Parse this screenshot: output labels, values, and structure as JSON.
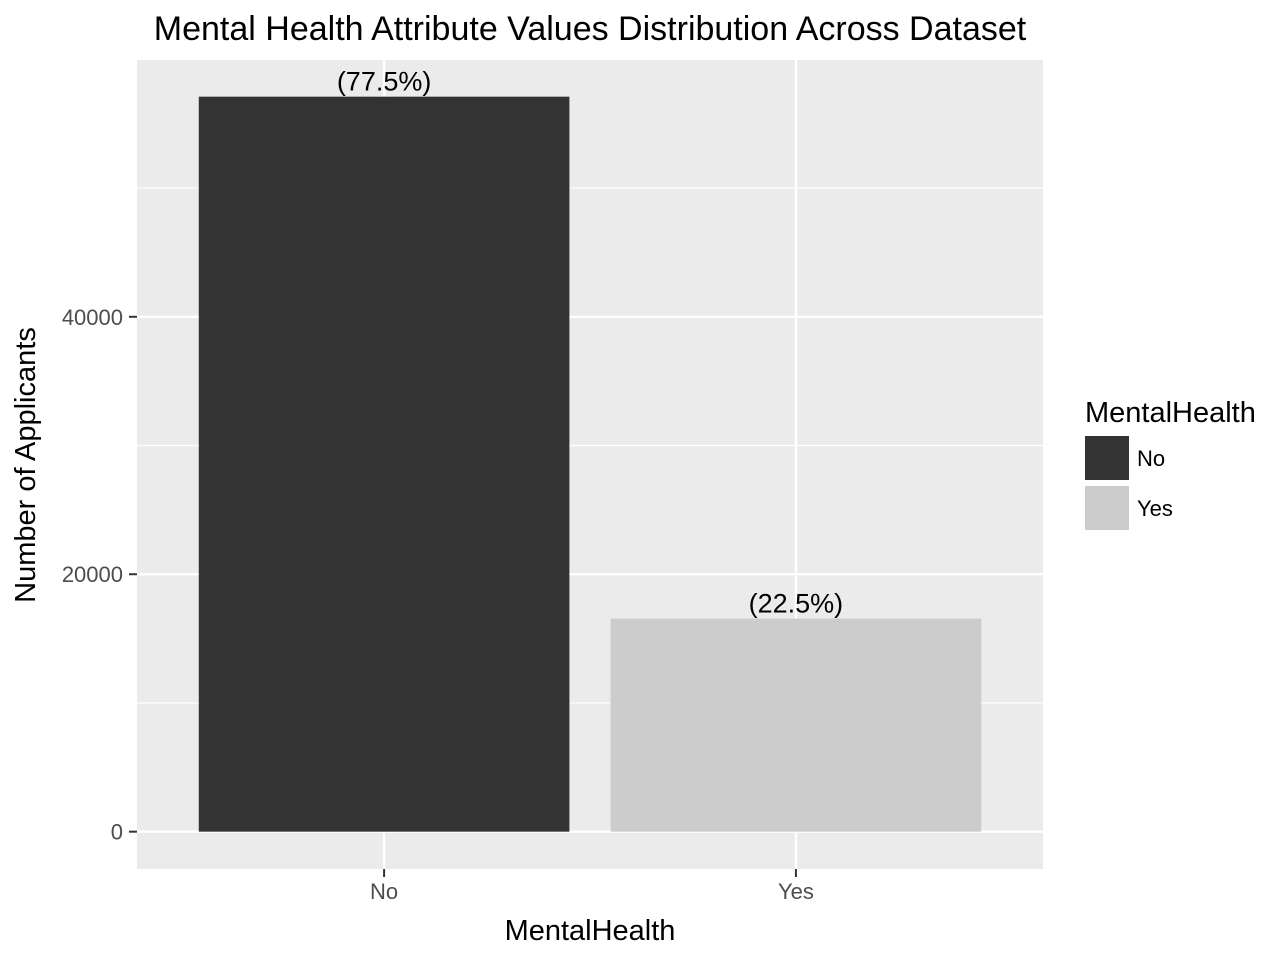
{
  "chart_data": {
    "type": "bar",
    "title": "Mental Health Attribute Values Distribution Across Dataset",
    "xlabel": "MentalHealth",
    "ylabel": "Number of Applicants",
    "categories": [
      "No",
      "Yes"
    ],
    "values": [
      57100,
      16550
    ],
    "data_labels": [
      "(77.5%)",
      "(22.5%)"
    ],
    "bar_colors": [
      "#333333",
      "#cccccc"
    ],
    "yticks": [
      0,
      20000,
      40000
    ],
    "yticks_labels": [
      "0",
      "20000",
      "40000"
    ],
    "ylim": [
      -2900,
      59950
    ],
    "grid": true,
    "panel_background": "#ebebeb",
    "grid_color": "#ffffff",
    "legend": {
      "title": "MentalHealth",
      "position": "right",
      "items": [
        {
          "label": "No",
          "color": "#333333"
        },
        {
          "label": "Yes",
          "color": "#cccccc"
        }
      ]
    }
  }
}
